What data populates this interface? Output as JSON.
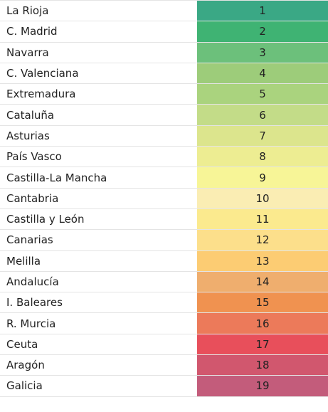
{
  "rows": [
    {
      "region": "La Rioja",
      "rank": "1",
      "color": "#3aa885"
    },
    {
      "region": "C. Madrid",
      "rank": "2",
      "color": "#3fb373"
    },
    {
      "region": "Navarra",
      "rank": "3",
      "color": "#6cc07b"
    },
    {
      "region": "C. Valenciana",
      "rank": "4",
      "color": "#9dcc7a"
    },
    {
      "region": "Extremadura",
      "rank": "5",
      "color": "#aad37e"
    },
    {
      "region": "Cataluña",
      "rank": "6",
      "color": "#c3dc88"
    },
    {
      "region": "Asturias",
      "rank": "7",
      "color": "#dce58d"
    },
    {
      "region": "País Vasco",
      "rank": "8",
      "color": "#eded92"
    },
    {
      "region": "Castilla-La Mancha",
      "rank": "9",
      "color": "#f7f597"
    },
    {
      "region": "Cantabria",
      "rank": "10",
      "color": "#faedb3"
    },
    {
      "region": "Castilla y León",
      "rank": "11",
      "color": "#fbea8e"
    },
    {
      "region": "Canarias",
      "rank": "12",
      "color": "#fcdf8b"
    },
    {
      "region": "Melilla",
      "rank": "13",
      "color": "#fccc73"
    },
    {
      "region": "Andalucía",
      "rank": "14",
      "color": "#efae6e"
    },
    {
      "region": "I. Baleares",
      "rank": "15",
      "color": "#f09250"
    },
    {
      "region": "R. Murcia",
      "rank": "16",
      "color": "#ec7a5a"
    },
    {
      "region": "Ceuta",
      "rank": "17",
      "color": "#e84f5b"
    },
    {
      "region": "Aragón",
      "rank": "18",
      "color": "#d1576e"
    },
    {
      "region": "Galicia",
      "rank": "19",
      "color": "#c35c7b"
    }
  ]
}
